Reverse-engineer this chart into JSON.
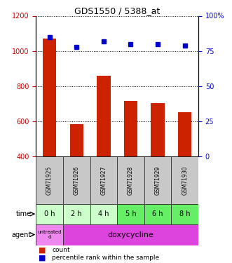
{
  "title": "GDS1550 / 5388_at",
  "samples": [
    "GSM71925",
    "GSM71926",
    "GSM71927",
    "GSM71928",
    "GSM71929",
    "GSM71930"
  ],
  "counts": [
    1070,
    585,
    860,
    715,
    705,
    650
  ],
  "percentiles": [
    85,
    78,
    82,
    80,
    80,
    79
  ],
  "ylim_left": [
    400,
    1200
  ],
  "ylim_right": [
    0,
    100
  ],
  "yticks_left": [
    400,
    600,
    800,
    1000,
    1200
  ],
  "yticks_right": [
    0,
    25,
    50,
    75,
    100
  ],
  "bar_color": "#cc2200",
  "dot_color": "#0000cc",
  "time_labels": [
    "0 h",
    "2 h",
    "4 h",
    "5 h",
    "6 h",
    "8 h"
  ],
  "agent_labels": [
    "untreated\nd",
    "doxycycline"
  ],
  "sample_bg": "#c8c8c8",
  "time_bg_colors": [
    "#ccffcc",
    "#ccffcc",
    "#ccffcc",
    "#66ee66",
    "#66ee66",
    "#66ee66"
  ],
  "agent_bg_untreated": "#ee88ee",
  "agent_bg_doxy": "#dd44dd",
  "legend_count_label": "count",
  "legend_pct_label": "percentile rank within the sample",
  "left_label_color": "#cc0000",
  "right_label_color": "#0000cc",
  "grid_dotted_levels": [
    600,
    800,
    1000
  ],
  "dotted_line_also_1200": false
}
